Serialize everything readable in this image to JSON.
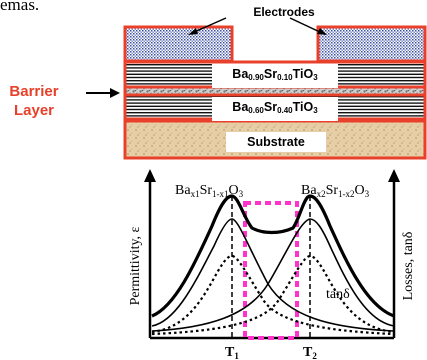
{
  "cropped_text": "emas.",
  "stack": {
    "electrodes_label": "Electrodes",
    "barrier_line1": "Barrier",
    "barrier_line2": "Layer",
    "film_top": {
      "base": "Ba",
      "sub1": "0.90",
      "mid": "Sr",
      "sub2": "0.10",
      "end": "TiO",
      "sub3": "3"
    },
    "film_bottom": {
      "base": "Ba",
      "sub1": "0.60",
      "mid": "Sr",
      "sub2": "0.40",
      "end": "TiO",
      "sub3": "3"
    },
    "substrate": "Substrate",
    "border_color": "#e8402a"
  },
  "plot": {
    "left_axis_label": "Permittivity, ε",
    "right_axis_label": "Losses, tanδ",
    "comp1_label": "Ba",
    "comp1_sub1": "x1",
    "comp1_mid": "Sr",
    "comp1_sub2": "1-x1",
    "comp1_end": "O",
    "comp1_sub3": "3",
    "comp2_label": "Ba",
    "comp2_sub1": "x2",
    "comp2_mid": "Sr",
    "comp2_sub2": "1-x2",
    "comp2_end": "O",
    "comp2_sub3": "3",
    "tan_label": "tanδ",
    "t1_label": "T",
    "t1_sub": "1",
    "t2_label": "T",
    "t2_sub": "2",
    "window_color": "#ff33cc"
  }
}
